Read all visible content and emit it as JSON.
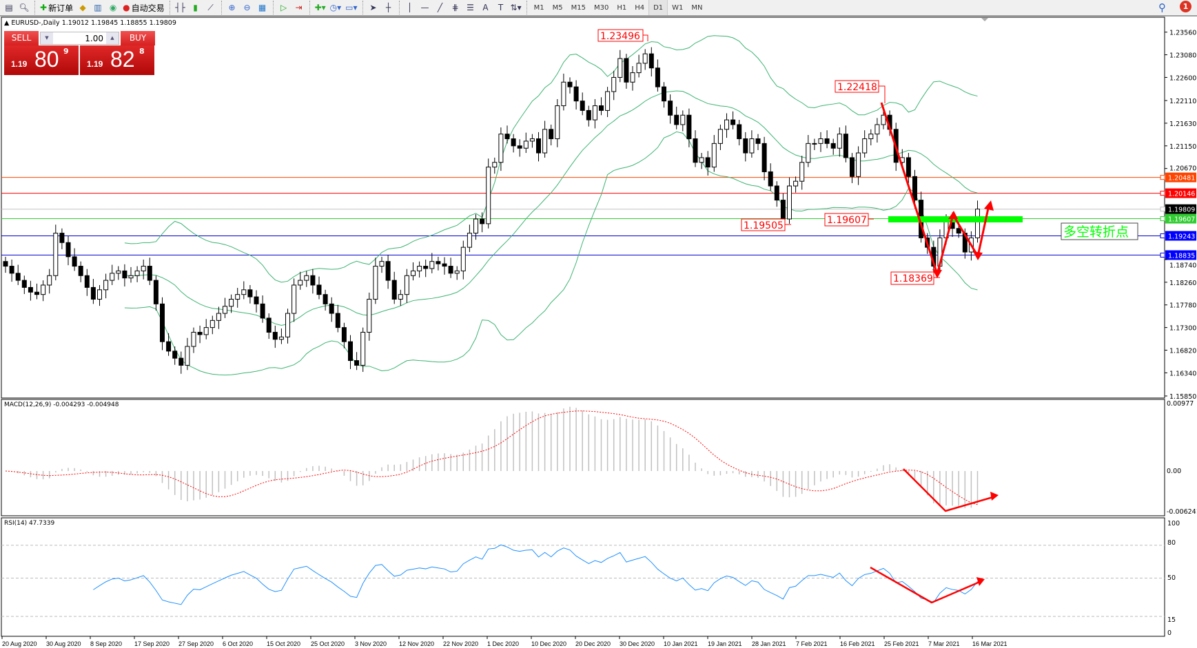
{
  "toolbar": {
    "new_order": "新订单",
    "auto_trading": "自动交易",
    "icons": [
      "market-watch-icon",
      "data-window-icon",
      "new-order-icon",
      "gold-icon",
      "server-icon",
      "signal-icon",
      "auto-trading-icon",
      "bar-chart-icon",
      "candlestick-icon",
      "line-chart-icon",
      "zoom-in-icon",
      "zoom-out-icon",
      "tile-icon",
      "chart-shift-icon",
      "autoscroll-icon",
      "indicators-icon",
      "periods-icon",
      "templates-icon",
      "cursor-icon",
      "crosshair-icon",
      "vertical-line-icon",
      "horizontal-line-icon",
      "trendline-icon",
      "fibonacci-icon",
      "fibo-fan-icon",
      "text-icon",
      "text-label-icon",
      "arrows-icon"
    ],
    "timeframes": [
      "M1",
      "M5",
      "M15",
      "M30",
      "H1",
      "H4",
      "D1",
      "W1",
      "MN"
    ],
    "active_timeframe": "D1",
    "text_tool": "A",
    "label_tool": "T",
    "notification_count": "1"
  },
  "chart_header": "EURUSD-,Daily  1.19012 1.19845 1.18855 1.19809",
  "trade_panel": {
    "sell_label": "SELL",
    "buy_label": "BUY",
    "lots": "1.00",
    "sell_prefix": "1.19",
    "sell_big": "80",
    "sell_sup": "9",
    "buy_prefix": "1.19",
    "buy_big": "82",
    "buy_sup": "8"
  },
  "chart_data": {
    "type": "candlestick",
    "symbol": "EURUSD-",
    "timeframe": "Daily",
    "first_open": 1.187,
    "closes": [
      1.186,
      1.1845,
      1.183,
      1.1815,
      1.1805,
      1.18,
      1.182,
      1.184,
      1.193,
      1.191,
      1.188,
      1.186,
      1.184,
      1.1815,
      1.179,
      1.181,
      1.183,
      1.1845,
      1.185,
      1.1835,
      1.184,
      1.185,
      1.186,
      1.183,
      1.178,
      1.17,
      1.168,
      1.1665,
      1.165,
      1.169,
      1.172,
      1.1715,
      1.173,
      1.1745,
      1.176,
      1.1775,
      1.179,
      1.18,
      1.181,
      1.1795,
      1.178,
      1.175,
      1.172,
      1.1705,
      1.171,
      1.176,
      1.182,
      1.183,
      1.184,
      1.182,
      1.18,
      1.178,
      1.176,
      1.173,
      1.17,
      1.166,
      1.165,
      1.172,
      1.179,
      1.186,
      1.187,
      1.183,
      1.179,
      1.18,
      1.184,
      1.185,
      1.186,
      1.1855,
      1.187,
      1.1865,
      1.186,
      1.1845,
      1.185,
      1.19,
      1.193,
      1.196,
      1.195,
      1.207,
      1.208,
      1.214,
      1.213,
      1.2115,
      1.211,
      1.2125,
      1.213,
      1.21,
      1.215,
      1.213,
      1.22,
      1.225,
      1.224,
      1.221,
      1.219,
      1.217,
      1.22,
      1.219,
      1.223,
      1.226,
      1.23,
      1.225,
      1.227,
      1.229,
      1.231,
      1.228,
      1.224,
      1.221,
      1.218,
      1.216,
      1.218,
      1.213,
      1.208,
      1.209,
      1.207,
      1.212,
      1.215,
      1.217,
      1.216,
      1.213,
      1.21,
      1.213,
      1.212,
      1.206,
      1.203,
      1.2,
      1.196,
      1.203,
      1.204,
      1.208,
      1.212,
      1.212,
      1.213,
      1.212,
      1.211,
      1.214,
      1.209,
      1.205,
      1.21,
      1.213,
      1.214,
      1.216,
      1.218,
      1.215,
      1.208,
      1.209,
      1.205,
      1.2,
      1.192,
      1.19,
      1.186,
      1.192,
      1.196,
      1.194,
      1.193,
      1.189,
      1.192,
      1.1981
    ],
    "price_ticks": [
      "1.23560",
      "1.23080",
      "1.22600",
      "1.22110",
      "1.21630",
      "1.21150",
      "1.20670",
      "1.18740",
      "1.18260",
      "1.17780",
      "1.17300",
      "1.16820",
      "1.16340",
      "1.15850"
    ],
    "date_ticks": [
      "20 Aug 2020",
      "30 Aug 2020",
      "8 Sep 2020",
      "17 Sep 2020",
      "27 Sep 2020",
      "6 Oct 2020",
      "15 Oct 2020",
      "25 Oct 2020",
      "3 Nov 2020",
      "12 Nov 2020",
      "22 Nov 2020",
      "1 Dec 2020",
      "10 Dec 2020",
      "20 Dec 2020",
      "30 Dec 2020",
      "10 Jan 2021",
      "19 Jan 2021",
      "28 Jan 2021",
      "7 Feb 2021",
      "16 Feb 2021",
      "25 Feb 2021",
      "7 Mar 2021",
      "16 Mar 2021"
    ],
    "indicators": {
      "bollinger": {
        "period": 20,
        "deviation": 2,
        "color": "#3cb371"
      },
      "macd": {
        "header": "MACD(12,26,9) -0.004293 -0.004948",
        "ticks": [
          "0.00977",
          "0.00",
          "-0.006241"
        ],
        "hist_color": "#c0c0c0",
        "signal_color": "#ff0000"
      },
      "rsi": {
        "header": "RSI(14) 47.7339",
        "ticks": [
          "100",
          "80",
          "50",
          "15",
          "0"
        ],
        "levels": [
          80,
          50,
          15
        ],
        "color": "#1e90ff"
      }
    },
    "hlines": [
      {
        "price": "1.20481",
        "color": "#ff4500",
        "tag_bg": "#ff4500"
      },
      {
        "price": "1.20146",
        "color": "#ff0000",
        "tag_bg": "#ff0000"
      },
      {
        "price": "1.19809",
        "color": "#c0c0c0",
        "tag_bg": "#000000"
      },
      {
        "price": "1.19607",
        "color": "#32cd32",
        "tag_bg": "#32cd32"
      },
      {
        "price": "1.19243",
        "color": "#0000cd",
        "tag_bg": "#0000ff"
      },
      {
        "price": "1.18835",
        "color": "#0000cd",
        "tag_bg": "#0000ff"
      }
    ],
    "price_labels": [
      "1.23496",
      "1.22418",
      "1.19505",
      "1.19607",
      "1.18369"
    ],
    "annotation_text": "多空转折点",
    "annotation_color": "#00ff00",
    "arrow_color": "#ff0000"
  }
}
